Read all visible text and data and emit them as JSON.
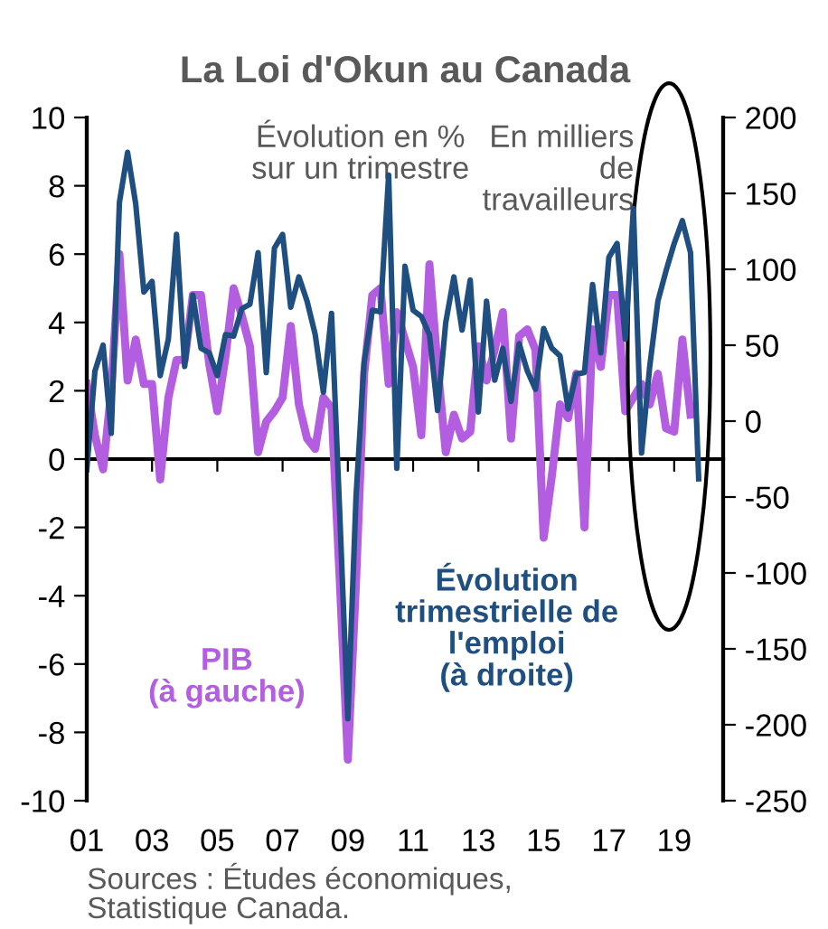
{
  "chart_data": {
    "type": "line",
    "title": "La Loi d'Okun au Canada",
    "x": [
      2001.0,
      2001.25,
      2001.5,
      2001.75,
      2002.0,
      2002.25,
      2002.5,
      2002.75,
      2003.0,
      2003.25,
      2003.5,
      2003.75,
      2004.0,
      2004.25,
      2004.5,
      2004.75,
      2005.0,
      2005.25,
      2005.5,
      2005.75,
      2006.0,
      2006.25,
      2006.5,
      2006.75,
      2007.0,
      2007.25,
      2007.5,
      2007.75,
      2008.0,
      2008.25,
      2008.5,
      2008.75,
      2009.0,
      2009.25,
      2009.5,
      2009.75,
      2010.0,
      2010.25,
      2010.5,
      2010.75,
      2011.0,
      2011.25,
      2011.5,
      2011.75,
      2012.0,
      2012.25,
      2012.5,
      2012.75,
      2013.0,
      2013.25,
      2013.5,
      2013.75,
      2014.0,
      2014.25,
      2014.5,
      2014.75,
      2015.0,
      2015.25,
      2015.5,
      2015.75,
      2016.0,
      2016.25,
      2016.5,
      2016.75,
      2017.0,
      2017.25,
      2017.5,
      2017.75,
      2018.0,
      2018.25,
      2018.5,
      2018.75,
      2019.0,
      2019.25,
      2019.5,
      2019.75
    ],
    "series": [
      {
        "color": "#b35ee0",
        "values": [
          2.2,
          0.7,
          -0.3,
          2.0,
          6.0,
          2.3,
          3.5,
          2.2,
          2.2,
          -0.6,
          1.8,
          2.9,
          2.9,
          4.8,
          4.8,
          2.8,
          1.4,
          3.0,
          5.0,
          4.2,
          3.3,
          0.2,
          1.1,
          1.4,
          1.8,
          3.9,
          1.6,
          0.6,
          0.3,
          1.8,
          1.5,
          -3.5,
          -8.8,
          -3.6,
          2.5,
          4.8,
          5.0,
          2.2,
          4.3,
          3.5,
          2.7,
          0.7,
          5.7,
          2.7,
          0.2,
          1.3,
          0.6,
          0.8,
          3.3,
          2.3,
          3.2,
          4.3,
          0.6,
          3.6,
          3.8,
          3.2,
          -2.3,
          -0.5,
          1.6,
          1.2,
          2.5,
          -2.0,
          3.8,
          2.7,
          4.8,
          4.8,
          1.4,
          1.8,
          2.2,
          1.6,
          2.5,
          0.9,
          0.8,
          3.5,
          1.3,
          null
        ]
      },
      {
        "color": "#1f4e80",
        "axis": "y2",
        "values": [
          -32,
          33,
          50,
          -8,
          144,
          177,
          143,
          85,
          92,
          30,
          54,
          123,
          36,
          83,
          48,
          45,
          30,
          57,
          56,
          74,
          77,
          111,
          32,
          114,
          123,
          75,
          95,
          79,
          57,
          19,
          71,
          -60,
          -196,
          -50,
          39,
          73,
          72,
          162,
          -31,
          102,
          73,
          69,
          57,
          7,
          65,
          95,
          60,
          93,
          6,
          79,
          27,
          48,
          13,
          51,
          33,
          21,
          61,
          48,
          43,
          8,
          31,
          32,
          90,
          45,
          108,
          117,
          54,
          140,
          -21,
          36,
          79,
          99,
          117,
          132,
          111,
          -38
        ]
      }
    ],
    "xlim": [
      2001,
      2020.5
    ],
    "xticks": [
      {
        "value": 2001,
        "label": "01"
      },
      {
        "value": 2003,
        "label": "03"
      },
      {
        "value": 2005,
        "label": "05"
      },
      {
        "value": 2007,
        "label": "07"
      },
      {
        "value": 2009,
        "label": "09"
      },
      {
        "value": 2011,
        "label": "11"
      },
      {
        "value": 2013,
        "label": "13"
      },
      {
        "value": 2015,
        "label": "15"
      },
      {
        "value": 2017,
        "label": "17"
      },
      {
        "value": 2019,
        "label": "19"
      }
    ],
    "ylim": [
      -10,
      10
    ],
    "yticks": [
      -10,
      -8,
      -6,
      -4,
      -2,
      0,
      2,
      4,
      6,
      8,
      10
    ],
    "y2lim": [
      -250,
      200
    ],
    "y2ticks": [
      -250,
      -200,
      -150,
      -100,
      -50,
      0,
      50,
      100,
      150,
      200
    ],
    "annotations": [
      "Évolution en %\nsur un trimestre",
      "En milliers\nde\ntravailleurs",
      "PIB\n(à gauche)",
      "Évolution\ntrimestrielle de\nl'emploi\n(à droite)",
      "Sources : Études économiques,\nStatistique Canada."
    ],
    "legend": false,
    "marker": "none",
    "line_style": "solid"
  }
}
